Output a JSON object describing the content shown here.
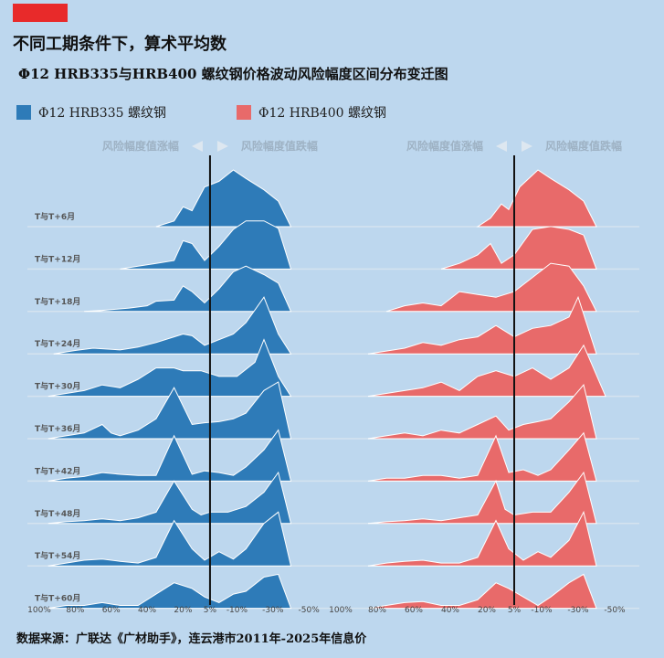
{
  "colors": {
    "background": "#bdd7ee",
    "accent": "#e82a2a",
    "hrb335": "#2e7bb8",
    "hrb400": "#e86a6a",
    "annotation": "#9eb2c4"
  },
  "title": "不同工期条件下，算术平均数",
  "subtitle": "Φ12 HRB335与HRB400 螺纹钢价格波动风险幅度区间分布变迁图",
  "legend": [
    {
      "label": "Φ12 HRB335 螺纹钢",
      "color": "#2e7bb8"
    },
    {
      "label": "Φ12 HRB400 螺纹钢",
      "color": "#e86a6a"
    }
  ],
  "annotations": {
    "rise": "风险幅度值涨幅",
    "fall": "风险幅度值跌幅"
  },
  "source": "数据来源：广联达《广材助手》，连云港市2011年-2025年信息价",
  "chart_data": {
    "type": "area",
    "title": "Φ12 HRB335与HRB400 螺纹钢价格波动风险幅度区间分布变迁图",
    "xlabel": "",
    "ylabel": "",
    "x_tick_labels": [
      "100%",
      "80%",
      "60%",
      "40%",
      "20%",
      "5%",
      "-10%",
      "-30%",
      "-50%"
    ],
    "x_ticks": [
      100,
      80,
      60,
      40,
      20,
      5,
      -10,
      -30,
      -50
    ],
    "xlim": [
      100,
      -55
    ],
    "reference_line_x": 5,
    "rows": [
      "T与T+6月",
      "T与T+12月",
      "T与T+18月",
      "T与T+24月",
      "T与T+30月",
      "T与T+36月",
      "T与T+42月",
      "T与T+48月",
      "T与T+54月",
      "T与T+60月"
    ],
    "series": [
      {
        "name": "Φ12 HRB335 螺纹钢",
        "rows": [
          {
            "x": [
              35,
              25,
              20,
              15,
              8,
              0,
              -8,
              -15,
              -25,
              -33,
              -40
            ],
            "y": [
              0,
              0.1,
              0.35,
              0.28,
              0.7,
              0.8,
              1.0,
              0.85,
              0.65,
              0.45,
              0
            ]
          },
          {
            "x": [
              55,
              45,
              35,
              25,
              20,
              15,
              8,
              0,
              -8,
              -15,
              -25,
              -33,
              -40
            ],
            "y": [
              0,
              0.05,
              0.1,
              0.15,
              0.5,
              0.45,
              0.15,
              0.4,
              0.7,
              0.85,
              0.85,
              0.72,
              0
            ]
          },
          {
            "x": [
              75,
              65,
              50,
              40,
              35,
              25,
              20,
              15,
              8,
              0,
              -8,
              -15,
              -25,
              -33,
              -40
            ],
            "y": [
              0,
              0.02,
              0.06,
              0.1,
              0.18,
              0.2,
              0.45,
              0.35,
              0.15,
              0.4,
              0.7,
              0.8,
              0.65,
              0.5,
              0
            ]
          },
          {
            "x": [
              92,
              80,
              70,
              55,
              45,
              35,
              25,
              20,
              15,
              8,
              0,
              -8,
              -15,
              -25,
              -33,
              -40
            ],
            "y": [
              0,
              0.06,
              0.1,
              0.07,
              0.12,
              0.2,
              0.3,
              0.35,
              0.32,
              0.15,
              0.25,
              0.35,
              0.55,
              1.0,
              0.35,
              0
            ]
          },
          {
            "x": [
              95,
              85,
              75,
              65,
              55,
              45,
              35,
              25,
              20,
              10,
              0,
              -10,
              -20,
              -25,
              -33,
              -40
            ],
            "y": [
              0,
              0.05,
              0.1,
              0.2,
              0.15,
              0.3,
              0.5,
              0.5,
              0.45,
              0.45,
              0.35,
              0.35,
              0.6,
              1.0,
              0.35,
              0
            ]
          },
          {
            "x": [
              95,
              85,
              75,
              65,
              60,
              55,
              45,
              35,
              25,
              15,
              8,
              0,
              -8,
              -15,
              -25,
              -33,
              -40
            ],
            "y": [
              0,
              0.05,
              0.1,
              0.25,
              0.1,
              0.05,
              0.15,
              0.35,
              0.9,
              0.25,
              0.28,
              0.3,
              0.35,
              0.45,
              0.85,
              1.0,
              0
            ]
          },
          {
            "x": [
              95,
              85,
              75,
              65,
              55,
              45,
              35,
              25,
              15,
              8,
              0,
              -8,
              -15,
              -25,
              -33,
              -40
            ],
            "y": [
              0,
              0.05,
              0.08,
              0.15,
              0.12,
              0.1,
              0.1,
              0.8,
              0.12,
              0.18,
              0.15,
              0.1,
              0.25,
              0.55,
              0.9,
              0
            ]
          },
          {
            "x": [
              95,
              85,
              75,
              65,
              55,
              45,
              35,
              25,
              15,
              10,
              5,
              -5,
              -15,
              -25,
              -33,
              -40
            ],
            "y": [
              0,
              0.03,
              0.05,
              0.08,
              0.05,
              0.1,
              0.2,
              0.75,
              0.25,
              0.15,
              0.2,
              0.2,
              0.3,
              0.55,
              0.9,
              0
            ]
          },
          {
            "x": [
              95,
              85,
              75,
              65,
              55,
              45,
              35,
              25,
              15,
              8,
              0,
              -8,
              -15,
              -25,
              -33,
              -40
            ],
            "y": [
              0,
              0.05,
              0.1,
              0.12,
              0.08,
              0.05,
              0.15,
              0.8,
              0.3,
              0.1,
              0.25,
              0.12,
              0.3,
              0.75,
              0.95,
              0
            ]
          },
          {
            "x": [
              95,
              85,
              75,
              65,
              55,
              45,
              35,
              25,
              15,
              8,
              0,
              -8,
              -15,
              -25,
              -33,
              -40
            ],
            "y": [
              0,
              0.05,
              0.05,
              0.1,
              0.05,
              0.05,
              0.25,
              0.45,
              0.35,
              0.2,
              0.1,
              0.25,
              0.3,
              0.55,
              0.6,
              0
            ]
          }
        ]
      },
      {
        "name": "Φ12 HRB400 螺纹钢",
        "rows": [
          {
            "x": [
              25,
              18,
              12,
              8,
              2,
              -8,
              -15,
              -25,
              -33,
              -40
            ],
            "y": [
              0,
              0.15,
              0.4,
              0.3,
              0.7,
              1.0,
              0.85,
              0.65,
              0.45,
              0
            ]
          },
          {
            "x": [
              45,
              35,
              25,
              18,
              12,
              5,
              -5,
              -15,
              -25,
              -33,
              -40
            ],
            "y": [
              0,
              0.1,
              0.25,
              0.45,
              0.1,
              0.25,
              0.7,
              0.75,
              0.7,
              0.6,
              0
            ]
          },
          {
            "x": [
              75,
              65,
              55,
              45,
              35,
              25,
              15,
              5,
              -5,
              -15,
              -25,
              -33,
              -40
            ],
            "y": [
              0,
              0.1,
              0.15,
              0.1,
              0.35,
              0.3,
              0.25,
              0.35,
              0.6,
              0.85,
              0.8,
              0.45,
              0
            ]
          },
          {
            "x": [
              85,
              75,
              65,
              55,
              45,
              35,
              25,
              15,
              5,
              -5,
              -15,
              -25,
              -30,
              -40
            ],
            "y": [
              0,
              0.05,
              0.1,
              0.2,
              0.15,
              0.25,
              0.3,
              0.5,
              0.3,
              0.45,
              0.5,
              0.65,
              1.0,
              0
            ]
          },
          {
            "x": [
              85,
              75,
              65,
              55,
              45,
              35,
              25,
              15,
              5,
              -5,
              -15,
              -25,
              -33,
              -45
            ],
            "y": [
              0,
              0.05,
              0.1,
              0.15,
              0.25,
              0.1,
              0.35,
              0.45,
              0.35,
              0.5,
              0.3,
              0.5,
              0.9,
              0
            ]
          },
          {
            "x": [
              85,
              75,
              65,
              55,
              45,
              35,
              25,
              15,
              8,
              0,
              -8,
              -15,
              -25,
              -33,
              -40
            ],
            "y": [
              0,
              0.05,
              0.1,
              0.05,
              0.15,
              0.1,
              0.25,
              0.4,
              0.15,
              0.25,
              0.3,
              0.35,
              0.65,
              0.95,
              0
            ]
          },
          {
            "x": [
              85,
              75,
              65,
              55,
              45,
              35,
              25,
              15,
              8,
              0,
              -8,
              -15,
              -25,
              -33,
              -40
            ],
            "y": [
              0,
              0.05,
              0.05,
              0.1,
              0.1,
              0.05,
              0.1,
              0.8,
              0.15,
              0.2,
              0.1,
              0.2,
              0.55,
              0.85,
              0
            ]
          },
          {
            "x": [
              85,
              75,
              65,
              55,
              45,
              35,
              25,
              15,
              10,
              5,
              -5,
              -15,
              -25,
              -33,
              -40
            ],
            "y": [
              0,
              0.03,
              0.05,
              0.08,
              0.05,
              0.1,
              0.15,
              0.75,
              0.25,
              0.15,
              0.2,
              0.2,
              0.55,
              0.9,
              0
            ]
          },
          {
            "x": [
              85,
              75,
              65,
              55,
              45,
              35,
              25,
              15,
              8,
              0,
              -8,
              -15,
              -25,
              -33,
              -40
            ],
            "y": [
              0,
              0.05,
              0.08,
              0.1,
              0.05,
              0.05,
              0.15,
              0.8,
              0.3,
              0.1,
              0.25,
              0.15,
              0.45,
              0.95,
              0
            ]
          },
          {
            "x": [
              85,
              75,
              65,
              55,
              45,
              35,
              25,
              15,
              8,
              0,
              -8,
              -15,
              -25,
              -33,
              -40
            ],
            "y": [
              0,
              0.05,
              0.1,
              0.12,
              0.05,
              0.05,
              0.15,
              0.45,
              0.35,
              0.2,
              0.05,
              0.2,
              0.45,
              0.6,
              0
            ]
          }
        ]
      }
    ]
  }
}
